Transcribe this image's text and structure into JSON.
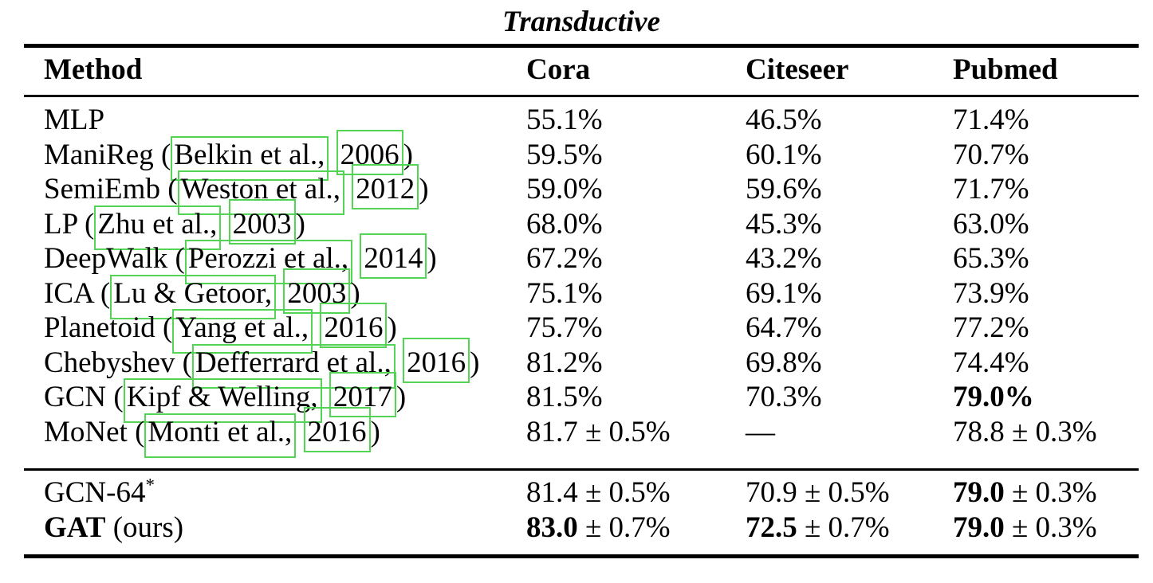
{
  "title": "Transductive",
  "columns": [
    "Method",
    "Cora",
    "Citeseer",
    "Pubmed"
  ],
  "citation_link_color": "#54d454",
  "text_color": "#000000",
  "background_color": "#ffffff",
  "sections": [
    {
      "rows": [
        {
          "method": [
            {
              "t": "MLP"
            }
          ],
          "cora": [
            {
              "t": "55.1%"
            }
          ],
          "citeseer": [
            {
              "t": "46.5%"
            }
          ],
          "pubmed": [
            {
              "t": "71.4%"
            }
          ]
        },
        {
          "method": [
            {
              "t": "ManiReg ("
            },
            {
              "t": "Belkin et al.,",
              "link": "author"
            },
            {
              "t": " "
            },
            {
              "t": "2006",
              "link": "year"
            },
            {
              "t": ")"
            }
          ],
          "cora": [
            {
              "t": "59.5%"
            }
          ],
          "citeseer": [
            {
              "t": "60.1%"
            }
          ],
          "pubmed": [
            {
              "t": "70.7%"
            }
          ]
        },
        {
          "method": [
            {
              "t": "SemiEmb ("
            },
            {
              "t": "Weston et al.,",
              "link": "author"
            },
            {
              "t": " "
            },
            {
              "t": "2012",
              "link": "year"
            },
            {
              "t": ")"
            }
          ],
          "cora": [
            {
              "t": "59.0%"
            }
          ],
          "citeseer": [
            {
              "t": "59.6%"
            }
          ],
          "pubmed": [
            {
              "t": "71.7%"
            }
          ]
        },
        {
          "method": [
            {
              "t": "LP ("
            },
            {
              "t": "Zhu et al.,",
              "link": "author"
            },
            {
              "t": " "
            },
            {
              "t": "2003",
              "link": "year"
            },
            {
              "t": ")"
            }
          ],
          "cora": [
            {
              "t": "68.0%"
            }
          ],
          "citeseer": [
            {
              "t": "45.3%"
            }
          ],
          "pubmed": [
            {
              "t": "63.0%"
            }
          ]
        },
        {
          "method": [
            {
              "t": "DeepWalk ("
            },
            {
              "t": "Perozzi et al.,",
              "link": "author"
            },
            {
              "t": " "
            },
            {
              "t": "2014",
              "link": "year"
            },
            {
              "t": ")"
            }
          ],
          "cora": [
            {
              "t": "67.2%"
            }
          ],
          "citeseer": [
            {
              "t": "43.2%"
            }
          ],
          "pubmed": [
            {
              "t": "65.3%"
            }
          ]
        },
        {
          "method": [
            {
              "t": "ICA ("
            },
            {
              "t": "Lu & Getoor,",
              "link": "author"
            },
            {
              "t": " "
            },
            {
              "t": "2003",
              "link": "year"
            },
            {
              "t": ")"
            }
          ],
          "cora": [
            {
              "t": "75.1%"
            }
          ],
          "citeseer": [
            {
              "t": "69.1%"
            }
          ],
          "pubmed": [
            {
              "t": "73.9%"
            }
          ]
        },
        {
          "method": [
            {
              "t": "Planetoid ("
            },
            {
              "t": "Yang et al.,",
              "link": "author"
            },
            {
              "t": " "
            },
            {
              "t": "2016",
              "link": "year"
            },
            {
              "t": ")"
            }
          ],
          "cora": [
            {
              "t": "75.7%"
            }
          ],
          "citeseer": [
            {
              "t": "64.7%"
            }
          ],
          "pubmed": [
            {
              "t": "77.2%"
            }
          ]
        },
        {
          "method": [
            {
              "t": "Chebyshev ("
            },
            {
              "t": "Defferrard et al.,",
              "link": "author"
            },
            {
              "t": " "
            },
            {
              "t": "2016",
              "link": "year"
            },
            {
              "t": ")"
            }
          ],
          "cora": [
            {
              "t": "81.2%"
            }
          ],
          "citeseer": [
            {
              "t": "69.8%"
            }
          ],
          "pubmed": [
            {
              "t": "74.4%"
            }
          ]
        },
        {
          "method": [
            {
              "t": "GCN ("
            },
            {
              "t": "Kipf & Welling,",
              "link": "author"
            },
            {
              "t": " "
            },
            {
              "t": "2017",
              "link": "year"
            },
            {
              "t": ")"
            }
          ],
          "cora": [
            {
              "t": "81.5%"
            }
          ],
          "citeseer": [
            {
              "t": "70.3%"
            }
          ],
          "pubmed": [
            {
              "t": "79.0%",
              "b": true
            }
          ]
        },
        {
          "method": [
            {
              "t": "MoNet ("
            },
            {
              "t": "Monti et al.,",
              "link": "author"
            },
            {
              "t": " "
            },
            {
              "t": "2016",
              "link": "year"
            },
            {
              "t": ")"
            }
          ],
          "cora": [
            {
              "t": "81.7 ± 0.5%"
            }
          ],
          "citeseer": [
            {
              "t": "—"
            }
          ],
          "pubmed": [
            {
              "t": "78.8 ± 0.3%"
            }
          ]
        }
      ]
    },
    {
      "rows": [
        {
          "method": [
            {
              "t": "GCN-64"
            },
            {
              "t": "*",
              "sup": true
            }
          ],
          "cora": [
            {
              "t": "81.4 ± 0.5%"
            }
          ],
          "citeseer": [
            {
              "t": "70.9 ± 0.5%"
            }
          ],
          "pubmed": [
            {
              "t": "79.0",
              "b": true
            },
            {
              "t": " ± 0.3%"
            }
          ]
        },
        {
          "method": [
            {
              "t": "GAT",
              "b": true
            },
            {
              "t": " (ours)"
            }
          ],
          "cora": [
            {
              "t": "83.0",
              "b": true
            },
            {
              "t": " ± 0.7%"
            }
          ],
          "citeseer": [
            {
              "t": "72.5",
              "b": true
            },
            {
              "t": " ± 0.7%"
            }
          ],
          "pubmed": [
            {
              "t": "79.0",
              "b": true
            },
            {
              "t": " ± 0.3%"
            }
          ]
        }
      ]
    }
  ]
}
